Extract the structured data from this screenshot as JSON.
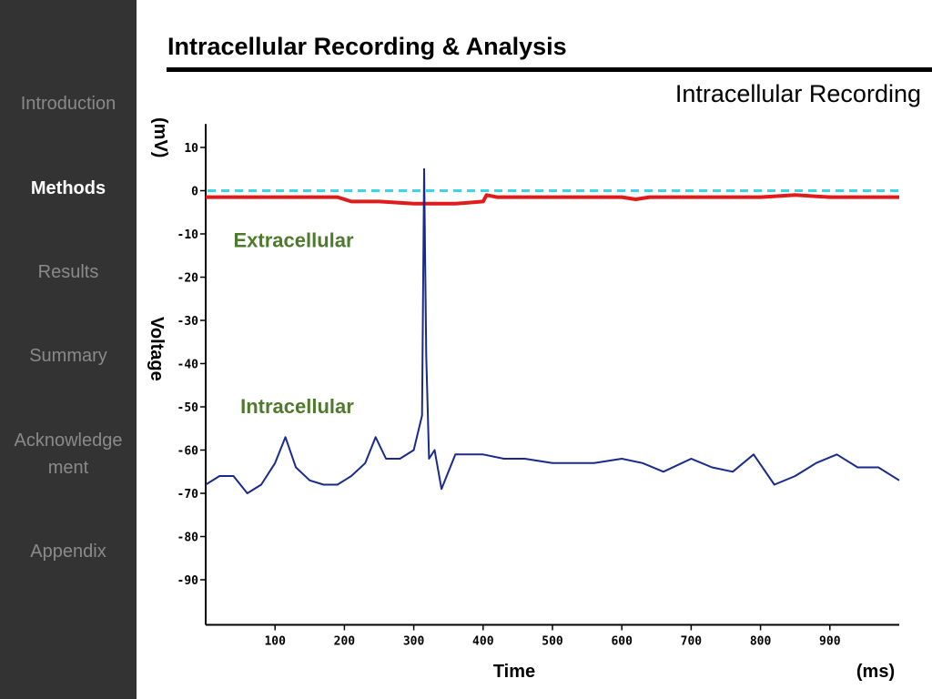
{
  "sidebar": {
    "items": [
      {
        "label": "Introduction",
        "active": false
      },
      {
        "label": "Methods",
        "active": true
      },
      {
        "label": "Results",
        "active": false
      },
      {
        "label": "Summary",
        "active": false
      },
      {
        "label": "Acknowledge\nment",
        "active": false
      },
      {
        "label": "Appendix",
        "active": false
      }
    ]
  },
  "slide": {
    "title": "Intracellular Recording  & Analysis",
    "subtitle": "Intracellular Recording"
  },
  "colors": {
    "sidebar_bg": "#333333",
    "intracellular": "#1a2a8c",
    "extracellular": "#e01b1b",
    "baseline": "#3ad6e6",
    "label_green": "#4e7a2d"
  },
  "chart_data": {
    "type": "line",
    "title": "",
    "xlabel": "Time",
    "xunit": "(ms)",
    "ylabel": "Voltage",
    "yunit": "(mV)",
    "xlim": [
      0,
      1000
    ],
    "ylim": [
      -100,
      15
    ],
    "xticks": [
      100,
      200,
      300,
      400,
      500,
      600,
      700,
      800,
      900
    ],
    "yticks": [
      10,
      0,
      -10,
      -20,
      -30,
      -40,
      -50,
      -60,
      -70,
      -80,
      -90
    ],
    "grid": false,
    "series": [
      {
        "name": "Extracellular",
        "color": "#e01b1b",
        "x": [
          0,
          50,
          100,
          150,
          190,
          210,
          250,
          300,
          320,
          360,
          400,
          405,
          420,
          500,
          600,
          620,
          640,
          700,
          800,
          850,
          900,
          950,
          1000
        ],
        "y": [
          -1.5,
          -1.5,
          -1.5,
          -1.5,
          -1.5,
          -2.5,
          -2.5,
          -3,
          -3,
          -3,
          -2.5,
          -1,
          -1.5,
          -1.5,
          -1.5,
          -2,
          -1.5,
          -1.5,
          -1.5,
          -1,
          -1.5,
          -1.5,
          -1.5
        ]
      },
      {
        "name": "Intracellular",
        "color": "#1a2a8c",
        "x": [
          0,
          20,
          40,
          60,
          80,
          100,
          115,
          130,
          150,
          170,
          190,
          210,
          230,
          245,
          260,
          280,
          300,
          312,
          315,
          318,
          322,
          330,
          340,
          360,
          380,
          400,
          430,
          460,
          500,
          530,
          560,
          600,
          630,
          660,
          700,
          730,
          760,
          790,
          820,
          850,
          880,
          910,
          940,
          970,
          1000
        ],
        "y": [
          -68,
          -66,
          -66,
          -70,
          -68,
          -63,
          -57,
          -64,
          -67,
          -68,
          -68,
          -66,
          -63,
          -57,
          -62,
          -62,
          -60,
          -52,
          5,
          -38,
          -62,
          -60,
          -69,
          -61,
          -61,
          -61,
          -62,
          -62,
          -63,
          -63,
          -63,
          -62,
          -63,
          -65,
          -62,
          -64,
          -65,
          -61,
          -68,
          -66,
          -63,
          -61,
          -64,
          -64,
          -67
        ]
      }
    ],
    "annotations": [
      {
        "text": "Extracellular",
        "x": 40,
        "y": -13
      },
      {
        "text": "Intracellular",
        "x": 50,
        "y": -51.5
      }
    ],
    "baseline": {
      "y": 0,
      "style": "dashed",
      "color": "#3ad6e6"
    }
  }
}
